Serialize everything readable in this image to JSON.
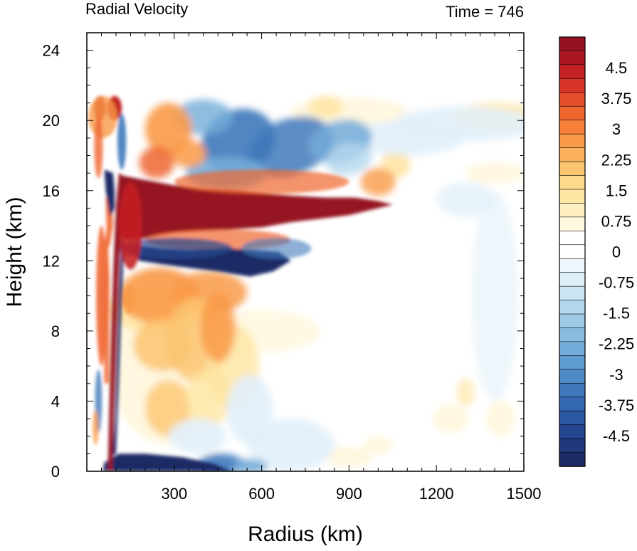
{
  "chart_data": {
    "type": "heatmap",
    "title_left": "Radial Velocity",
    "title_right": "Time = 746",
    "xlabel": "Radius (km)",
    "ylabel": "Height (km)",
    "xlim": [
      0,
      1500
    ],
    "ylim": [
      0,
      25
    ],
    "x_ticks": [
      300,
      600,
      900,
      1200,
      1500
    ],
    "y_ticks": [
      0,
      4,
      8,
      12,
      16,
      20,
      24
    ],
    "x_tick_labels": [
      "300",
      "600",
      "900",
      "1200",
      "1500"
    ],
    "y_tick_labels": [
      "0",
      "4",
      "8",
      "12",
      "16",
      "20",
      "24"
    ],
    "colorbar": {
      "min": -5.25,
      "max": 5.25,
      "step": 0.375,
      "label_values": [
        4.5,
        3.75,
        3,
        2.25,
        1.5,
        0.75,
        0,
        -0.75,
        -1.5,
        -2.25,
        -3,
        -3.75,
        -4.5
      ],
      "labels": [
        "4.5",
        "3.75",
        "3",
        "2.25",
        "1.5",
        "0.75",
        "0",
        "-0.75",
        "-1.5",
        "-2.25",
        "-3",
        "-3.75",
        "-4.5"
      ],
      "colors": [
        "#1e2c66",
        "#21397c",
        "#25478f",
        "#2b58a3",
        "#3468b0",
        "#3f79bb",
        "#4e8bc5",
        "#5f9ccf",
        "#73acd8",
        "#88bce0",
        "#9ecae7",
        "#b4d7ee",
        "#cae4f4",
        "#dfeff9",
        "#f0f7fc",
        "#ffffff",
        "#ffffff",
        "#fff8e0",
        "#fff0c2",
        "#fee6a5",
        "#fdd98a",
        "#fcc671",
        "#fbb15c",
        "#f99a49",
        "#f5813b",
        "#ef6631",
        "#e54c2b",
        "#d63426",
        "#c32124",
        "#ac1522",
        "#951221"
      ]
    },
    "features": [
      {
        "name": "upper outflow jet",
        "sign": "positive",
        "r_range": [
          110,
          1050
        ],
        "z": 15.2
      },
      {
        "name": "lower inflow below outflow",
        "sign": "negative",
        "r_range": [
          150,
          700
        ],
        "z": 12.2
      },
      {
        "name": "boundary-layer inflow",
        "sign": "negative",
        "r_range": [
          60,
          500
        ],
        "z": 0.5
      },
      {
        "name": "eyewall updraft tilt",
        "sign": "positive",
        "r_range": [
          75,
          120
        ],
        "z_range": [
          0,
          16
        ]
      }
    ]
  }
}
